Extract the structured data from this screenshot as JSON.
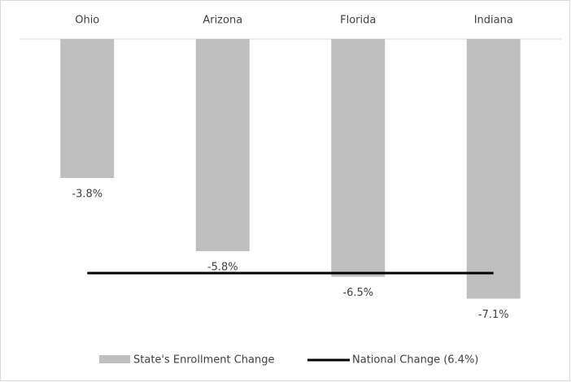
{
  "chart_data": {
    "type": "bar",
    "categories": [
      "Ohio",
      "Arizona",
      "Florida",
      "Indiana"
    ],
    "series": [
      {
        "name": "State's Enrollment Change",
        "color": "#bfbfbf",
        "values": [
          -3.8,
          -5.8,
          -6.5,
          -7.1
        ],
        "value_labels": [
          "-3.8%",
          "-5.8%",
          "-6.5%",
          "-7.1%"
        ]
      }
    ],
    "reference_line": {
      "name": "National Change (6.4%)",
      "value": -6.4,
      "color": "#000000"
    },
    "ylim": [
      -8,
      0
    ],
    "legend": "bottom"
  }
}
